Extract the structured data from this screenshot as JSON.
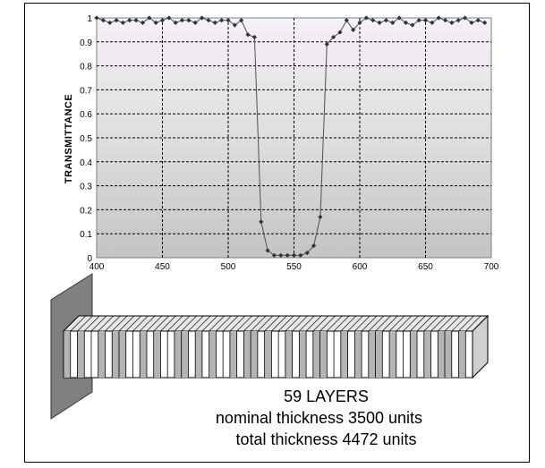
{
  "chart_data": {
    "type": "line",
    "title": "",
    "xlabel": "",
    "ylabel": "TRANSMITTANCE",
    "xlim": [
      400,
      700
    ],
    "ylim": [
      0,
      1
    ],
    "x_ticks": [
      "400",
      "450",
      "500",
      "550",
      "600",
      "650",
      "700"
    ],
    "y_ticks": [
      "0",
      "0.1",
      "0.2",
      "0.3",
      "0.4",
      "0.5",
      "0.6",
      "0.7",
      "0.8",
      "0.9",
      "1"
    ],
    "grid": true,
    "series": [
      {
        "name": "",
        "marker": "diamond",
        "color": "#404040",
        "x": [
          400,
          405,
          410,
          415,
          420,
          425,
          430,
          435,
          440,
          445,
          450,
          455,
          460,
          465,
          470,
          475,
          480,
          485,
          490,
          495,
          500,
          505,
          510,
          515,
          520,
          525,
          530,
          535,
          540,
          545,
          550,
          555,
          560,
          565,
          570,
          575,
          580,
          585,
          590,
          595,
          600,
          605,
          610,
          615,
          620,
          625,
          630,
          635,
          640,
          645,
          650,
          655,
          660,
          665,
          670,
          675,
          680,
          685,
          690,
          695
        ],
        "y": [
          1.0,
          0.99,
          0.98,
          0.99,
          0.98,
          0.99,
          0.99,
          0.98,
          1.0,
          0.98,
          0.99,
          1.0,
          0.98,
          0.99,
          0.99,
          0.98,
          1.0,
          0.99,
          0.98,
          0.99,
          0.99,
          0.97,
          0.99,
          0.93,
          0.92,
          0.15,
          0.03,
          0.01,
          0.01,
          0.01,
          0.01,
          0.01,
          0.02,
          0.05,
          0.17,
          0.89,
          0.92,
          0.94,
          0.99,
          0.95,
          0.98,
          1.0,
          0.99,
          0.98,
          0.99,
          0.98,
          1.0,
          0.98,
          0.97,
          0.99,
          0.99,
          0.98,
          1.0,
          0.99,
          0.98,
          0.99,
          1.0,
          0.98,
          0.99,
          0.98
        ]
      }
    ],
    "layer_stack": {
      "pattern": [
        1,
        0,
        1,
        0,
        0,
        1,
        0,
        1,
        1,
        0,
        0,
        1,
        0,
        1,
        0,
        0,
        1,
        1,
        0,
        1,
        0,
        1,
        0,
        0,
        1,
        0,
        1,
        1,
        0,
        1,
        0,
        0,
        1,
        0,
        1,
        0,
        1,
        1,
        0,
        0,
        1,
        0,
        1,
        0,
        1,
        1,
        0,
        1,
        0,
        0,
        1,
        0,
        1,
        0,
        1,
        1,
        0,
        1,
        0
      ]
    }
  },
  "caption": {
    "layers": "59 LAYERS",
    "nominal": "nominal thickness 3500 units",
    "total": "total thickness 4472 units"
  }
}
